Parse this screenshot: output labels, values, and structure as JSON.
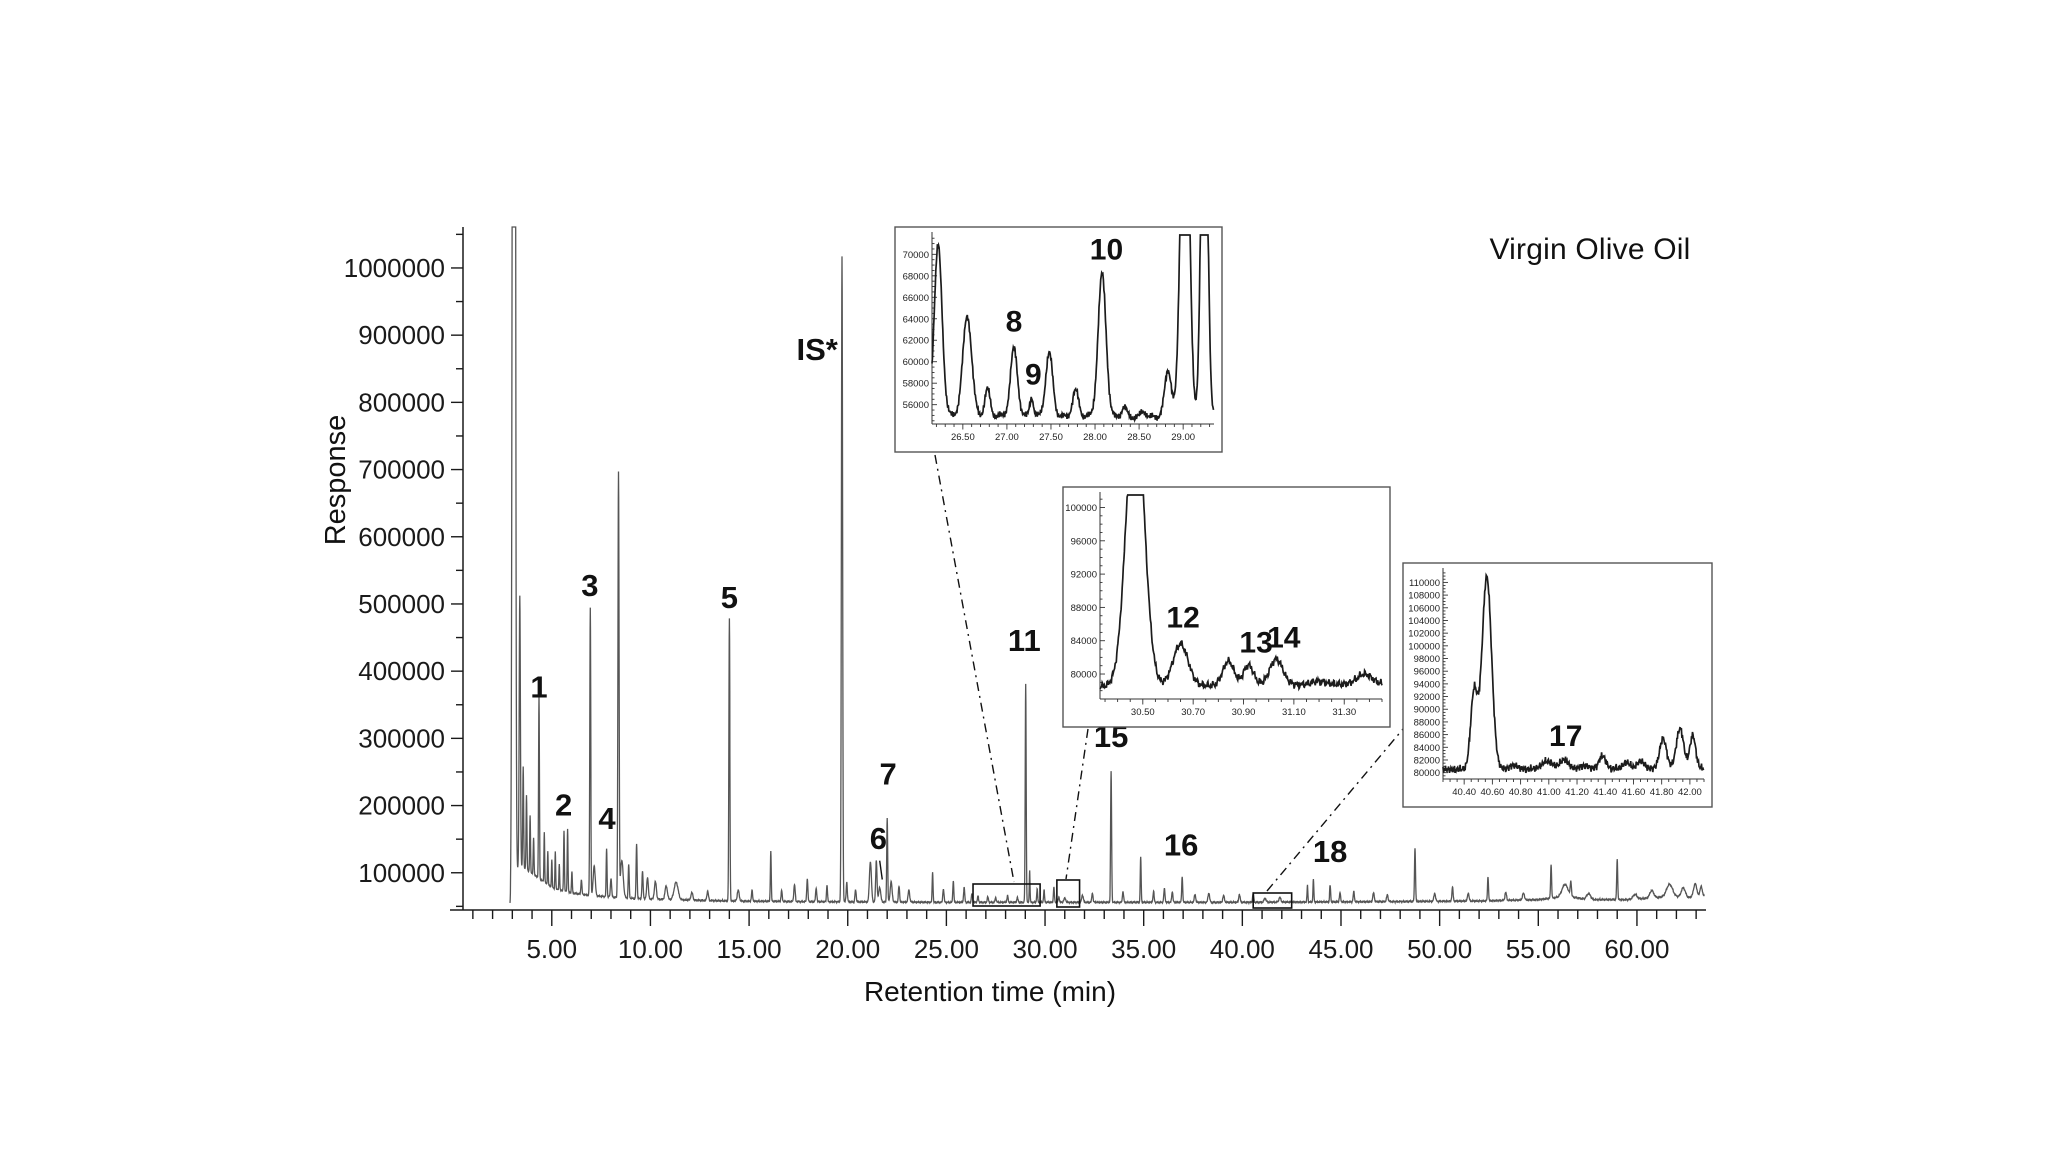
{
  "header": {
    "sample_name": "Virgin Olive Oil"
  },
  "axes": {
    "x_title": "Retention time (min)",
    "y_title": "Response"
  },
  "chart_data": {
    "type": "line",
    "title": "Virgin Olive Oil",
    "xlabel": "Retention time (min)",
    "ylabel": "Response",
    "grid": false,
    "main": {
      "x_range": [
        0.5,
        63.5
      ],
      "v_bottom": 55000,
      "v_top": 1061000,
      "x_ticks": {
        "values": [
          5,
          10,
          15,
          20,
          25,
          30,
          35,
          40,
          45,
          50,
          55,
          60
        ],
        "labels": [
          "5.00",
          "10.00",
          "15.00",
          "20.00",
          "25.00",
          "30.00",
          "35.00",
          "40.00",
          "45.00",
          "50.00",
          "55.00",
          "60.00"
        ],
        "minor_step": 1
      },
      "y_ticks": {
        "values": [
          100000,
          200000,
          300000,
          400000,
          500000,
          600000,
          700000,
          800000,
          900000,
          1000000
        ],
        "labels": [
          "100000",
          "200000",
          "300000",
          "400000",
          "500000",
          "600000",
          "700000",
          "800000",
          "900000",
          "1000000"
        ],
        "minor_step": 50000
      },
      "baseline": [
        [
          2.88,
          52000
        ],
        [
          3.2,
          100000
        ],
        [
          3.35,
          112000
        ],
        [
          4.2,
          95000
        ],
        [
          5,
          78000
        ],
        [
          6,
          70000
        ],
        [
          7,
          66000
        ],
        [
          8,
          64000
        ],
        [
          9,
          62000
        ],
        [
          11,
          60000
        ],
        [
          14,
          58000
        ],
        [
          18,
          57000
        ],
        [
          25,
          56000
        ],
        [
          33,
          56000
        ],
        [
          40,
          56000
        ],
        [
          47,
          57000
        ],
        [
          52,
          58000
        ],
        [
          55,
          60000
        ],
        [
          56.5,
          65000
        ],
        [
          57.5,
          60000
        ],
        [
          59.5,
          60000
        ],
        [
          60.5,
          62000
        ],
        [
          61.8,
          65000
        ],
        [
          62.6,
          63000
        ],
        [
          63.4,
          67000
        ]
      ],
      "peaks": [
        [
          2.97,
          110000,
          0.03
        ],
        [
          3.08,
          5000000,
          0.05
        ],
        [
          3.38,
          400000,
          0.03
        ],
        [
          3.55,
          150000,
          0.022
        ],
        [
          3.72,
          110000,
          0.022
        ],
        [
          3.9,
          85000,
          0.02
        ],
        [
          4.08,
          55000,
          0.02
        ],
        [
          4.35,
          270000,
          0.022
        ],
        [
          4.62,
          75000,
          0.018
        ],
        [
          4.8,
          50000,
          0.018
        ],
        [
          5.0,
          42000,
          0.018
        ],
        [
          5.18,
          55000,
          0.018
        ],
        [
          5.38,
          38000,
          0.018
        ],
        [
          5.62,
          90000,
          0.02
        ],
        [
          5.8,
          95000,
          0.02
        ],
        [
          6.02,
          32000,
          0.02
        ],
        [
          6.5,
          22000,
          0.025
        ],
        [
          6.95,
          428000,
          0.025
        ],
        [
          7.15,
          45000,
          0.05
        ],
        [
          7.78,
          72000,
          0.022
        ],
        [
          8.0,
          28000,
          0.03
        ],
        [
          8.38,
          630000,
          0.028
        ],
        [
          8.55,
          55000,
          0.07
        ],
        [
          8.9,
          50000,
          0.025
        ],
        [
          9.3,
          82000,
          0.025
        ],
        [
          9.6,
          40000,
          0.03
        ],
        [
          9.85,
          32000,
          0.04
        ],
        [
          10.25,
          26000,
          0.05
        ],
        [
          10.8,
          20000,
          0.06
        ],
        [
          11.3,
          26000,
          0.1
        ],
        [
          12.1,
          11000,
          0.05
        ],
        [
          12.9,
          14000,
          0.04
        ],
        [
          14.0,
          420000,
          0.026
        ],
        [
          14.45,
          16000,
          0.05
        ],
        [
          15.15,
          16000,
          0.03
        ],
        [
          16.1,
          75000,
          0.022
        ],
        [
          16.65,
          16000,
          0.03
        ],
        [
          17.3,
          25000,
          0.035
        ],
        [
          17.95,
          34000,
          0.028
        ],
        [
          18.4,
          20000,
          0.03
        ],
        [
          18.95,
          25000,
          0.025
        ],
        [
          19.71,
          960000,
          0.03
        ],
        [
          19.95,
          30000,
          0.03
        ],
        [
          20.4,
          18000,
          0.03
        ],
        [
          21.15,
          60000,
          0.05
        ],
        [
          21.45,
          62000,
          0.035
        ],
        [
          21.62,
          22000,
          0.05
        ],
        [
          22.0,
          125000,
          0.024
        ],
        [
          22.2,
          30000,
          0.05
        ],
        [
          22.6,
          24000,
          0.03
        ],
        [
          23.1,
          18000,
          0.04
        ],
        [
          24.3,
          45000,
          0.022
        ],
        [
          24.85,
          20000,
          0.03
        ],
        [
          25.35,
          32000,
          0.025
        ],
        [
          25.9,
          22000,
          0.03
        ],
        [
          26.3,
          13000,
          0.03
        ],
        [
          26.6,
          9000,
          0.03
        ],
        [
          27.1,
          8000,
          0.03
        ],
        [
          27.5,
          7000,
          0.03
        ],
        [
          28.1,
          10000,
          0.03
        ],
        [
          28.6,
          7000,
          0.03
        ],
        [
          29.02,
          325000,
          0.024
        ],
        [
          29.22,
          48000,
          0.02
        ],
        [
          29.6,
          20000,
          0.025
        ],
        [
          29.95,
          18000,
          0.025
        ],
        [
          30.45,
          22000,
          0.025
        ],
        [
          30.7,
          8000,
          0.03
        ],
        [
          31.0,
          6000,
          0.05
        ],
        [
          31.9,
          11000,
          0.04
        ],
        [
          32.4,
          14000,
          0.03
        ],
        [
          33.35,
          195000,
          0.025
        ],
        [
          33.95,
          16000,
          0.03
        ],
        [
          34.85,
          68000,
          0.022
        ],
        [
          35.5,
          16000,
          0.03
        ],
        [
          36.05,
          20000,
          0.03
        ],
        [
          36.45,
          16000,
          0.03
        ],
        [
          36.95,
          38000,
          0.025
        ],
        [
          37.6,
          12000,
          0.035
        ],
        [
          38.3,
          14000,
          0.04
        ],
        [
          39.05,
          10000,
          0.04
        ],
        [
          39.85,
          12000,
          0.035
        ],
        [
          40.55,
          14000,
          0.028
        ],
        [
          41.15,
          6000,
          0.05
        ],
        [
          41.9,
          7000,
          0.05
        ],
        [
          43.3,
          25000,
          0.022
        ],
        [
          43.6,
          33000,
          0.022
        ],
        [
          44.45,
          25000,
          0.025
        ],
        [
          44.95,
          13000,
          0.03
        ],
        [
          45.65,
          15000,
          0.03
        ],
        [
          46.65,
          13000,
          0.04
        ],
        [
          47.35,
          10000,
          0.04
        ],
        [
          48.75,
          80000,
          0.025
        ],
        [
          49.75,
          12000,
          0.04
        ],
        [
          50.65,
          21000,
          0.03
        ],
        [
          51.45,
          12000,
          0.04
        ],
        [
          52.45,
          36000,
          0.025
        ],
        [
          53.35,
          12000,
          0.04
        ],
        [
          54.25,
          10000,
          0.05
        ],
        [
          55.65,
          50000,
          0.025
        ],
        [
          56.35,
          18000,
          0.15
        ],
        [
          56.65,
          22000,
          0.03
        ],
        [
          57.55,
          9000,
          0.1
        ],
        [
          59.0,
          60000,
          0.025
        ],
        [
          59.9,
          7000,
          0.1
        ],
        [
          60.75,
          11000,
          0.1
        ],
        [
          61.65,
          18000,
          0.15
        ],
        [
          62.35,
          14000,
          0.1
        ],
        [
          62.95,
          19000,
          0.08
        ],
        [
          63.25,
          14000,
          0.05
        ]
      ],
      "peak_labels": [
        {
          "text": "1",
          "t": 4.35,
          "v": 361000
        },
        {
          "text": "2",
          "t": 5.6,
          "v": 185000
        },
        {
          "text": "3",
          "t": 6.93,
          "v": 512000
        },
        {
          "text": "4",
          "t": 7.8,
          "v": 165000
        },
        {
          "text": "5",
          "t": 14.0,
          "v": 494000
        },
        {
          "text": "IS*",
          "t": 18.45,
          "v": 863000
        },
        {
          "text": "6",
          "t": 21.55,
          "v": 135000
        },
        {
          "text": "7",
          "t": 22.05,
          "v": 231000
        },
        {
          "text": "11",
          "t": 28.95,
          "v": 430000
        },
        {
          "text": "15",
          "t": 33.35,
          "v": 287000
        },
        {
          "text": "16",
          "t": 36.9,
          "v": 126000
        },
        {
          "text": "18",
          "t": 44.45,
          "v": 116000
        }
      ],
      "leaders": [
        {
          "from": [
            21.62,
            118000
          ],
          "to": [
            21.75,
            90000
          ]
        }
      ]
    },
    "insets": [
      {
        "id": "inset-1",
        "x_range": [
          26.15,
          29.35
        ],
        "v_range": [
          54200,
          71800
        ],
        "x_ticks": {
          "values": [
            26.5,
            27.0,
            27.5,
            28.0,
            28.5,
            29.0
          ],
          "labels": [
            "26.50",
            "27.00",
            "27.50",
            "28.00",
            "28.50",
            "29.00"
          ],
          "minor_step": 0.1
        },
        "y_ticks": {
          "values": [
            56000,
            58000,
            60000,
            62000,
            64000,
            66000,
            68000,
            70000
          ],
          "labels": [
            "56000",
            "58000",
            "60000",
            "62000",
            "64000",
            "66000",
            "68000",
            "70000"
          ],
          "minor_step": 500
        },
        "baseline": [
          [
            26.15,
            55000
          ],
          [
            29.35,
            54800
          ]
        ],
        "peaks": [
          [
            26.22,
            15800,
            0.045
          ],
          [
            26.55,
            9300,
            0.05
          ],
          [
            26.78,
            2500,
            0.03
          ],
          [
            27.08,
            6300,
            0.04
          ],
          [
            27.28,
            1700,
            0.022
          ],
          [
            27.48,
            5900,
            0.04
          ],
          [
            27.78,
            2400,
            0.035
          ],
          [
            28.08,
            13300,
            0.045
          ],
          [
            28.33,
            900,
            0.03
          ],
          [
            28.55,
            500,
            0.03
          ],
          [
            28.83,
            4300,
            0.04
          ],
          [
            29.02,
            40000,
            0.045
          ],
          [
            29.24,
            40000,
            0.035
          ]
        ],
        "peak_labels": [
          {
            "text": "8",
            "t": 27.08,
            "v": 62800
          },
          {
            "text": "9",
            "t": 27.3,
            "v": 57900
          },
          {
            "text": "10",
            "t": 28.13,
            "v": 69500
          }
        ],
        "source_box_t": [
          26.35,
          29.75
        ]
      },
      {
        "id": "inset-2",
        "x_range": [
          30.33,
          31.45
        ],
        "v_range": [
          77000,
          101500
        ],
        "x_ticks": {
          "values": [
            30.5,
            30.7,
            30.9,
            31.1,
            31.3
          ],
          "labels": [
            "30.50",
            "30.70",
            "30.90",
            "31.10",
            "31.30"
          ],
          "minor_step": 0.05
        },
        "y_ticks": {
          "values": [
            80000,
            84000,
            88000,
            92000,
            96000,
            100000
          ],
          "labels": [
            "80000",
            "84000",
            "88000",
            "92000",
            "96000",
            "100000"
          ],
          "minor_step": 1000
        },
        "baseline": [
          [
            30.33,
            78500
          ],
          [
            31.45,
            78800
          ]
        ],
        "peaks": [
          [
            30.47,
            35000,
            0.035
          ],
          [
            30.65,
            5000,
            0.03
          ],
          [
            30.84,
            2900,
            0.022
          ],
          [
            30.92,
            2400,
            0.02
          ],
          [
            31.03,
            3100,
            0.026
          ],
          [
            31.2,
            400,
            0.03
          ],
          [
            31.38,
            1200,
            0.03
          ]
        ],
        "peak_labels": [
          {
            "text": "12",
            "t": 30.66,
            "v": 85600
          },
          {
            "text": "13",
            "t": 30.95,
            "v": 82600
          },
          {
            "text": "14",
            "t": 31.06,
            "v": 83200
          }
        ],
        "source_box_t": [
          30.6,
          31.75
        ]
      },
      {
        "id": "inset-3",
        "x_range": [
          40.25,
          42.1
        ],
        "v_range": [
          79000,
          111800
        ],
        "x_ticks": {
          "values": [
            40.4,
            40.6,
            40.8,
            41.0,
            41.2,
            41.4,
            41.6,
            41.8,
            42.0
          ],
          "labels": [
            "40.40",
            "40.60",
            "40.80",
            "41.00",
            "41.20",
            "41.40",
            "41.60",
            "41.80",
            "42.00"
          ],
          "minor_step": 0.05
        },
        "y_ticks": {
          "values": [
            80000,
            82000,
            84000,
            86000,
            88000,
            90000,
            92000,
            94000,
            96000,
            98000,
            100000,
            102000,
            104000,
            106000,
            108000,
            110000
          ],
          "labels": [
            "80000",
            "82000",
            "84000",
            "86000",
            "88000",
            "90000",
            "92000",
            "94000",
            "96000",
            "98000",
            "100000",
            "102000",
            "104000",
            "106000",
            "108000",
            "110000"
          ],
          "minor_step": 500
        },
        "baseline": [
          [
            40.25,
            80500
          ],
          [
            42.1,
            80700
          ]
        ],
        "peaks": [
          [
            40.47,
            12000,
            0.024
          ],
          [
            40.56,
            30400,
            0.034
          ],
          [
            40.75,
            600,
            0.03
          ],
          [
            40.99,
            1200,
            0.04
          ],
          [
            41.11,
            1500,
            0.028
          ],
          [
            41.25,
            500,
            0.03
          ],
          [
            41.38,
            2000,
            0.024
          ],
          [
            41.55,
            1000,
            0.024
          ],
          [
            41.65,
            1200,
            0.024
          ],
          [
            41.81,
            4700,
            0.024
          ],
          [
            41.93,
            6300,
            0.026
          ],
          [
            42.02,
            5200,
            0.02
          ]
        ],
        "peak_labels": [
          {
            "text": "17",
            "t": 41.12,
            "v": 84200
          }
        ],
        "source_box_t": [
          40.55,
          42.5
        ]
      }
    ]
  }
}
